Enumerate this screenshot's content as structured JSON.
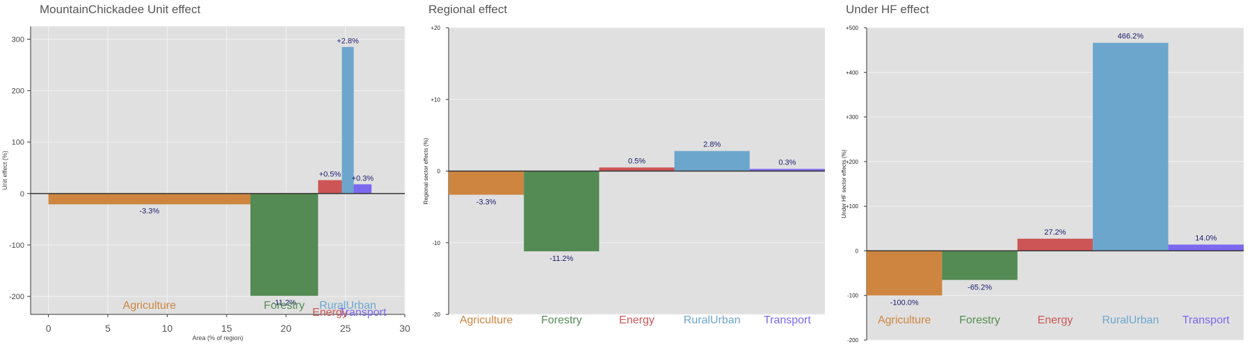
{
  "colors": {
    "Agriculture": "#cd853f",
    "Forestry": "#548b54",
    "Energy": "#cd5555",
    "RuralUrban": "#6ca6cd",
    "Transport": "#7b68ee",
    "panel_bg": "#e0e0e0",
    "label_text": "#1a1a6e"
  },
  "chart_data": [
    {
      "type": "bar",
      "title": "MountainChickadee Unit effect",
      "xlabel": "Area (% of region)",
      "ylabel": "Unit effect (%)",
      "xlim": [
        -1.5,
        30
      ],
      "ylim": [
        -235,
        325
      ],
      "xticks": [
        0,
        5,
        10,
        15,
        20,
        25,
        30
      ],
      "yticks": [
        -200,
        -100,
        0,
        100,
        200,
        300
      ],
      "ytick_labels": [
        "-200",
        "-100",
        "0",
        "100",
        "200",
        "300"
      ],
      "grid": true,
      "legend": "none",
      "categories": [
        "Agriculture",
        "Forestry",
        "Energy",
        "RuralUrban",
        "Transport"
      ],
      "x_start": [
        0,
        17,
        22.7,
        24.7,
        25.7
      ],
      "x_end": [
        17,
        22.7,
        24.7,
        25.7,
        27.2
      ],
      "values": [
        -21,
        -199,
        26,
        285,
        18
      ],
      "bar_labels": [
        "-3.3%",
        "-11.2%",
        "+0.5%",
        "+2.8%",
        "+0.3%"
      ]
    },
    {
      "type": "bar",
      "title": "Regional effect",
      "xlabel": "",
      "ylabel": "Regional sector effects (%)",
      "ylim": [
        -20,
        20
      ],
      "yticks": [
        -20,
        -10,
        0,
        10,
        20
      ],
      "ytick_labels": [
        "-20",
        "-10",
        "0",
        "+10",
        "+20"
      ],
      "grid": true,
      "legend": "none",
      "categories": [
        "Agriculture",
        "Forestry",
        "Energy",
        "RuralUrban",
        "Transport"
      ],
      "values": [
        -3.3,
        -11.2,
        0.5,
        2.8,
        0.3
      ],
      "bar_labels": [
        "-3.3%",
        "-11.2%",
        "0.5%",
        "2.8%",
        "0.3%"
      ]
    },
    {
      "type": "bar",
      "title": "Under HF effect",
      "xlabel": "",
      "ylabel": "Under HF sector effects (%)",
      "ylim": [
        -200,
        500
      ],
      "yticks": [
        -200,
        -100,
        0,
        100,
        200,
        300,
        400,
        500
      ],
      "ytick_labels": [
        "-200",
        "-100",
        "0",
        "+100",
        "+200",
        "+300",
        "+400",
        "+500"
      ],
      "grid": true,
      "legend": "none",
      "categories": [
        "Agriculture",
        "Forestry",
        "Energy",
        "RuralUrban",
        "Transport"
      ],
      "values": [
        -100.0,
        -65.2,
        27.2,
        466.2,
        14.0
      ],
      "bar_labels": [
        "-100.0%",
        "-65.2%",
        "27.2%",
        "466.2%",
        "14.0%"
      ]
    }
  ]
}
